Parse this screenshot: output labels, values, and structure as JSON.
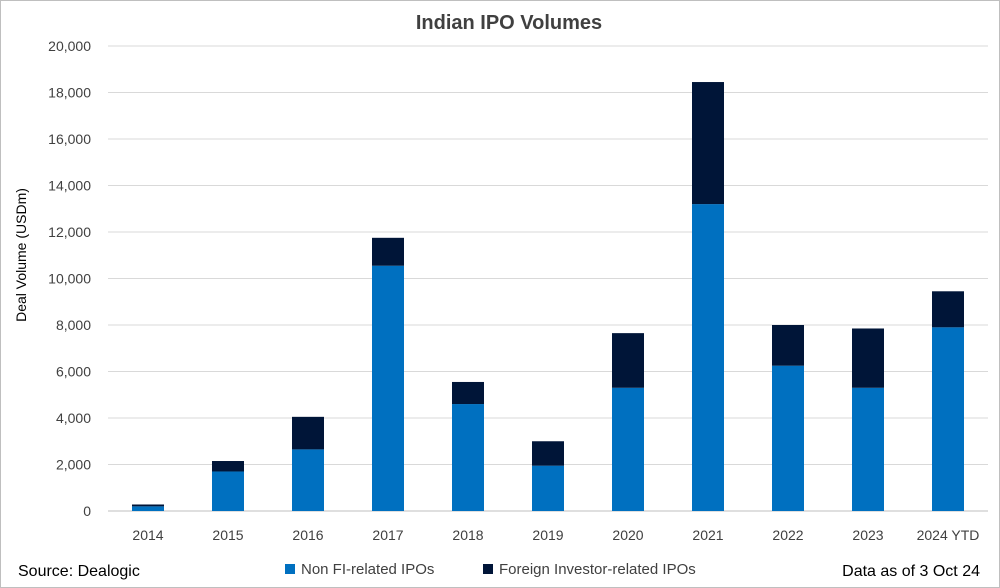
{
  "chart_data": {
    "type": "bar",
    "stacked": true,
    "title": "Indian IPO Volumes",
    "xlabel": "",
    "ylabel": "Deal Volume (USDm)",
    "ylim": [
      0,
      20000
    ],
    "yticks": [
      0,
      2000,
      4000,
      6000,
      8000,
      10000,
      12000,
      14000,
      16000,
      18000,
      20000
    ],
    "ytick_labels": [
      "0",
      "2,000",
      "4,000",
      "6,000",
      "8,000",
      "10,000",
      "12,000",
      "14,000",
      "16,000",
      "18,000",
      "20,000"
    ],
    "grid": true,
    "legend_position": "bottom",
    "categories": [
      "2014",
      "2015",
      "2016",
      "2017",
      "2018",
      "2019",
      "2020",
      "2021",
      "2022",
      "2023",
      "2024 YTD"
    ],
    "series": [
      {
        "name": "Non FI-related IPOs",
        "color": "#0070c0",
        "values": [
          200,
          1700,
          2650,
          10550,
          4600,
          1950,
          5300,
          13200,
          6250,
          5300,
          7900
        ]
      },
      {
        "name": "Foreign Investor-related IPOs",
        "color": "#001538",
        "values": [
          80,
          450,
          1400,
          1200,
          950,
          1050,
          2350,
          5250,
          1750,
          2550,
          1550
        ]
      }
    ]
  },
  "footer": {
    "source": "Source: Dealogic",
    "note": "Data as of 3 Oct 24"
  }
}
